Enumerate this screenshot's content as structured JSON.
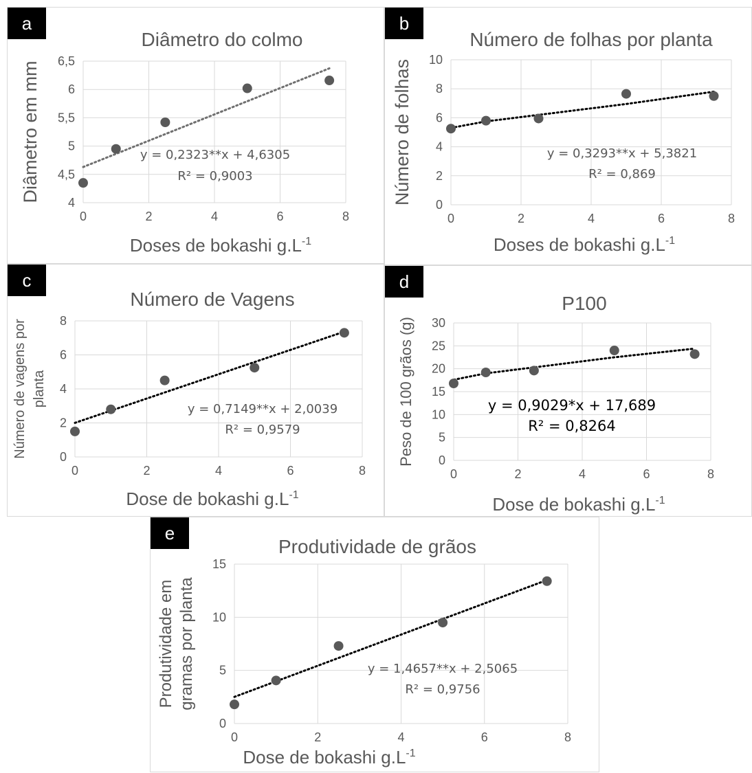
{
  "chart_data": [
    {
      "panel_letter": "a",
      "type": "scatter",
      "title": "Diâmetro do colmo",
      "xlabel_main": "Doses de bokashi g.L",
      "xlabel_sup": "-1",
      "ylabel_lines": [
        "Diâmetro em mm"
      ],
      "xlim": [
        0,
        8
      ],
      "ylim": [
        4,
        6.5
      ],
      "xticks": [
        "0",
        "2",
        "4",
        "6",
        "8"
      ],
      "yticks": [
        "4",
        "4,5",
        "5",
        "5,5",
        "6",
        "6,5"
      ],
      "x": [
        0,
        1,
        2.5,
        5,
        7.5
      ],
      "y": [
        4.35,
        4.95,
        5.42,
        6.02,
        6.16
      ],
      "trendline": {
        "slope": 0.2323,
        "intercept": 4.6305,
        "style": "dotted-gray"
      },
      "equation": "y = 0,2323**x + 4,6305",
      "r2": "R² = 0,9003",
      "grid": true
    },
    {
      "panel_letter": "b",
      "type": "scatter",
      "title": "Número de folhas por planta",
      "xlabel_main": "Doses de bokashi g.L",
      "xlabel_sup": "-1",
      "ylabel_lines": [
        "Número de folhas"
      ],
      "xlim": [
        0,
        8
      ],
      "ylim": [
        0,
        10
      ],
      "xticks": [
        "0",
        "2",
        "4",
        "6",
        "8"
      ],
      "yticks": [
        "0",
        "2",
        "4",
        "6",
        "8",
        "10"
      ],
      "x": [
        0,
        1,
        2.5,
        5,
        7.5
      ],
      "y": [
        5.25,
        5.8,
        5.95,
        7.65,
        7.5
      ],
      "trendline": {
        "type": "log",
        "points_x": [
          0,
          1,
          2.5,
          5,
          7.5
        ],
        "points_y": [
          5.3,
          5.75,
          6.2,
          6.95,
          7.8
        ],
        "style": "dotted-black"
      },
      "equation": "y = 0,3293**x + 5,3821",
      "r2": "R² = 0,869",
      "grid": true
    },
    {
      "panel_letter": "c",
      "type": "scatter",
      "title": "Número de Vagens",
      "xlabel_main": "Dose de bokashi g.L",
      "xlabel_sup": "-1",
      "ylabel_lines": [
        "Número de vagens por",
        "planta"
      ],
      "xlim": [
        0,
        8
      ],
      "ylim": [
        0,
        8
      ],
      "xticks": [
        "0",
        "2",
        "4",
        "6",
        "8"
      ],
      "yticks": [
        "0",
        "2",
        "4",
        "6",
        "8"
      ],
      "x": [
        0,
        1,
        2.5,
        5,
        7.5
      ],
      "y": [
        1.5,
        2.8,
        4.5,
        5.25,
        7.3
      ],
      "trendline": {
        "slope": 0.7149,
        "intercept": 2.0039,
        "style": "dotted-black"
      },
      "equation": "y = 0,7149**x + 2,0039",
      "r2": "R² = 0,9579",
      "grid": true
    },
    {
      "panel_letter": "d",
      "type": "scatter",
      "title": "P100",
      "xlabel_main": "Dose de bokashi g.L",
      "xlabel_sup": "-1",
      "ylabel_lines": [
        "Peso de 100 grãos (g)"
      ],
      "xlim": [
        0,
        8
      ],
      "ylim": [
        0,
        30
      ],
      "xticks": [
        "0",
        "2",
        "4",
        "6",
        "8"
      ],
      "yticks": [
        "0",
        "5",
        "10",
        "15",
        "20",
        "25",
        "30"
      ],
      "x": [
        0,
        1,
        2.5,
        5,
        7.5
      ],
      "y": [
        16.8,
        19.2,
        19.6,
        24.0,
        23.2
      ],
      "trendline": {
        "type": "log",
        "points_x": [
          0,
          1,
          2.5,
          5,
          7.5
        ],
        "points_y": [
          17.6,
          19.0,
          20.3,
          22.5,
          24.4
        ],
        "style": "dotted-black"
      },
      "equation": "y = 0,9029*x + 17,689",
      "r2": "R² = 0,8264",
      "grid": true
    },
    {
      "panel_letter": "e",
      "type": "scatter",
      "title": "Produtividade de grãos",
      "xlabel_main": "Dose de bokashi g.L",
      "xlabel_sup": "-1",
      "ylabel_lines": [
        "Produtividade em",
        "gramas por planta"
      ],
      "xlim": [
        0,
        8
      ],
      "ylim": [
        0,
        15
      ],
      "xticks": [
        "0",
        "2",
        "4",
        "6",
        "8"
      ],
      "yticks": [
        "0",
        "5",
        "10",
        "15"
      ],
      "x": [
        0,
        1,
        2.5,
        5,
        7.5
      ],
      "y": [
        1.8,
        4.05,
        7.3,
        9.5,
        13.4
      ],
      "trendline": {
        "slope": 1.4657,
        "intercept": 2.5065,
        "style": "dotted-black"
      },
      "equation": "y = 1,4657**x + 2,5065",
      "r2": "R² = 0,9756",
      "grid": true
    }
  ],
  "colors": {
    "marker": "#595959",
    "grid": "#d9d9d9",
    "text": "#595959",
    "trend_gray": "#6f6f6f",
    "trend_black": "#000000",
    "letter_bg": "#000000",
    "letter_fg": "#ffffff"
  }
}
